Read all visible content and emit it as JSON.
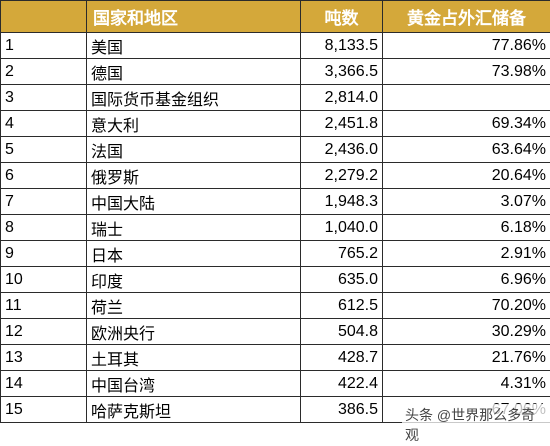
{
  "table": {
    "headers": {
      "rank": "",
      "name": "国家和地区",
      "tons": "吨数",
      "pct": "黄金占外汇储备"
    },
    "rows": [
      {
        "rank": "1",
        "name": "美国",
        "tons": "8,133.5",
        "pct": "77.86%"
      },
      {
        "rank": "2",
        "name": "德国",
        "tons": "3,366.5",
        "pct": "73.98%"
      },
      {
        "rank": "3",
        "name": "国际货币基金组织",
        "tons": "2,814.0",
        "pct": ""
      },
      {
        "rank": "4",
        "name": "意大利",
        "tons": "2,451.8",
        "pct": "69.34%"
      },
      {
        "rank": "5",
        "name": "法国",
        "tons": "2,436.0",
        "pct": "63.64%"
      },
      {
        "rank": "6",
        "name": "俄罗斯",
        "tons": "2,279.2",
        "pct": "20.64%"
      },
      {
        "rank": "7",
        "name": "中国大陆",
        "tons": "1,948.3",
        "pct": "3.07%"
      },
      {
        "rank": "8",
        "name": "瑞士",
        "tons": "1,040.0",
        "pct": "6.18%"
      },
      {
        "rank": "9",
        "name": "日本",
        "tons": "765.2",
        "pct": "2.91%"
      },
      {
        "rank": "10",
        "name": "印度",
        "tons": "635.0",
        "pct": "6.96%"
      },
      {
        "rank": "11",
        "name": "荷兰",
        "tons": "612.5",
        "pct": "70.20%"
      },
      {
        "rank": "12",
        "name": "欧洲央行",
        "tons": "504.8",
        "pct": "30.29%"
      },
      {
        "rank": "13",
        "name": "土耳其",
        "tons": "428.7",
        "pct": "21.76%"
      },
      {
        "rank": "14",
        "name": "中国台湾",
        "tons": "422.4",
        "pct": "4.31%"
      },
      {
        "rank": "15",
        "name": "哈萨克斯坦",
        "tons": "386.5",
        "pct": "67.06%"
      }
    ]
  },
  "watermark": {
    "text": "头条 @世界那么多奇观"
  },
  "colors": {
    "header_bg": "#d4a83a",
    "header_text": "#ffffff",
    "border": "#2b2b2b"
  }
}
